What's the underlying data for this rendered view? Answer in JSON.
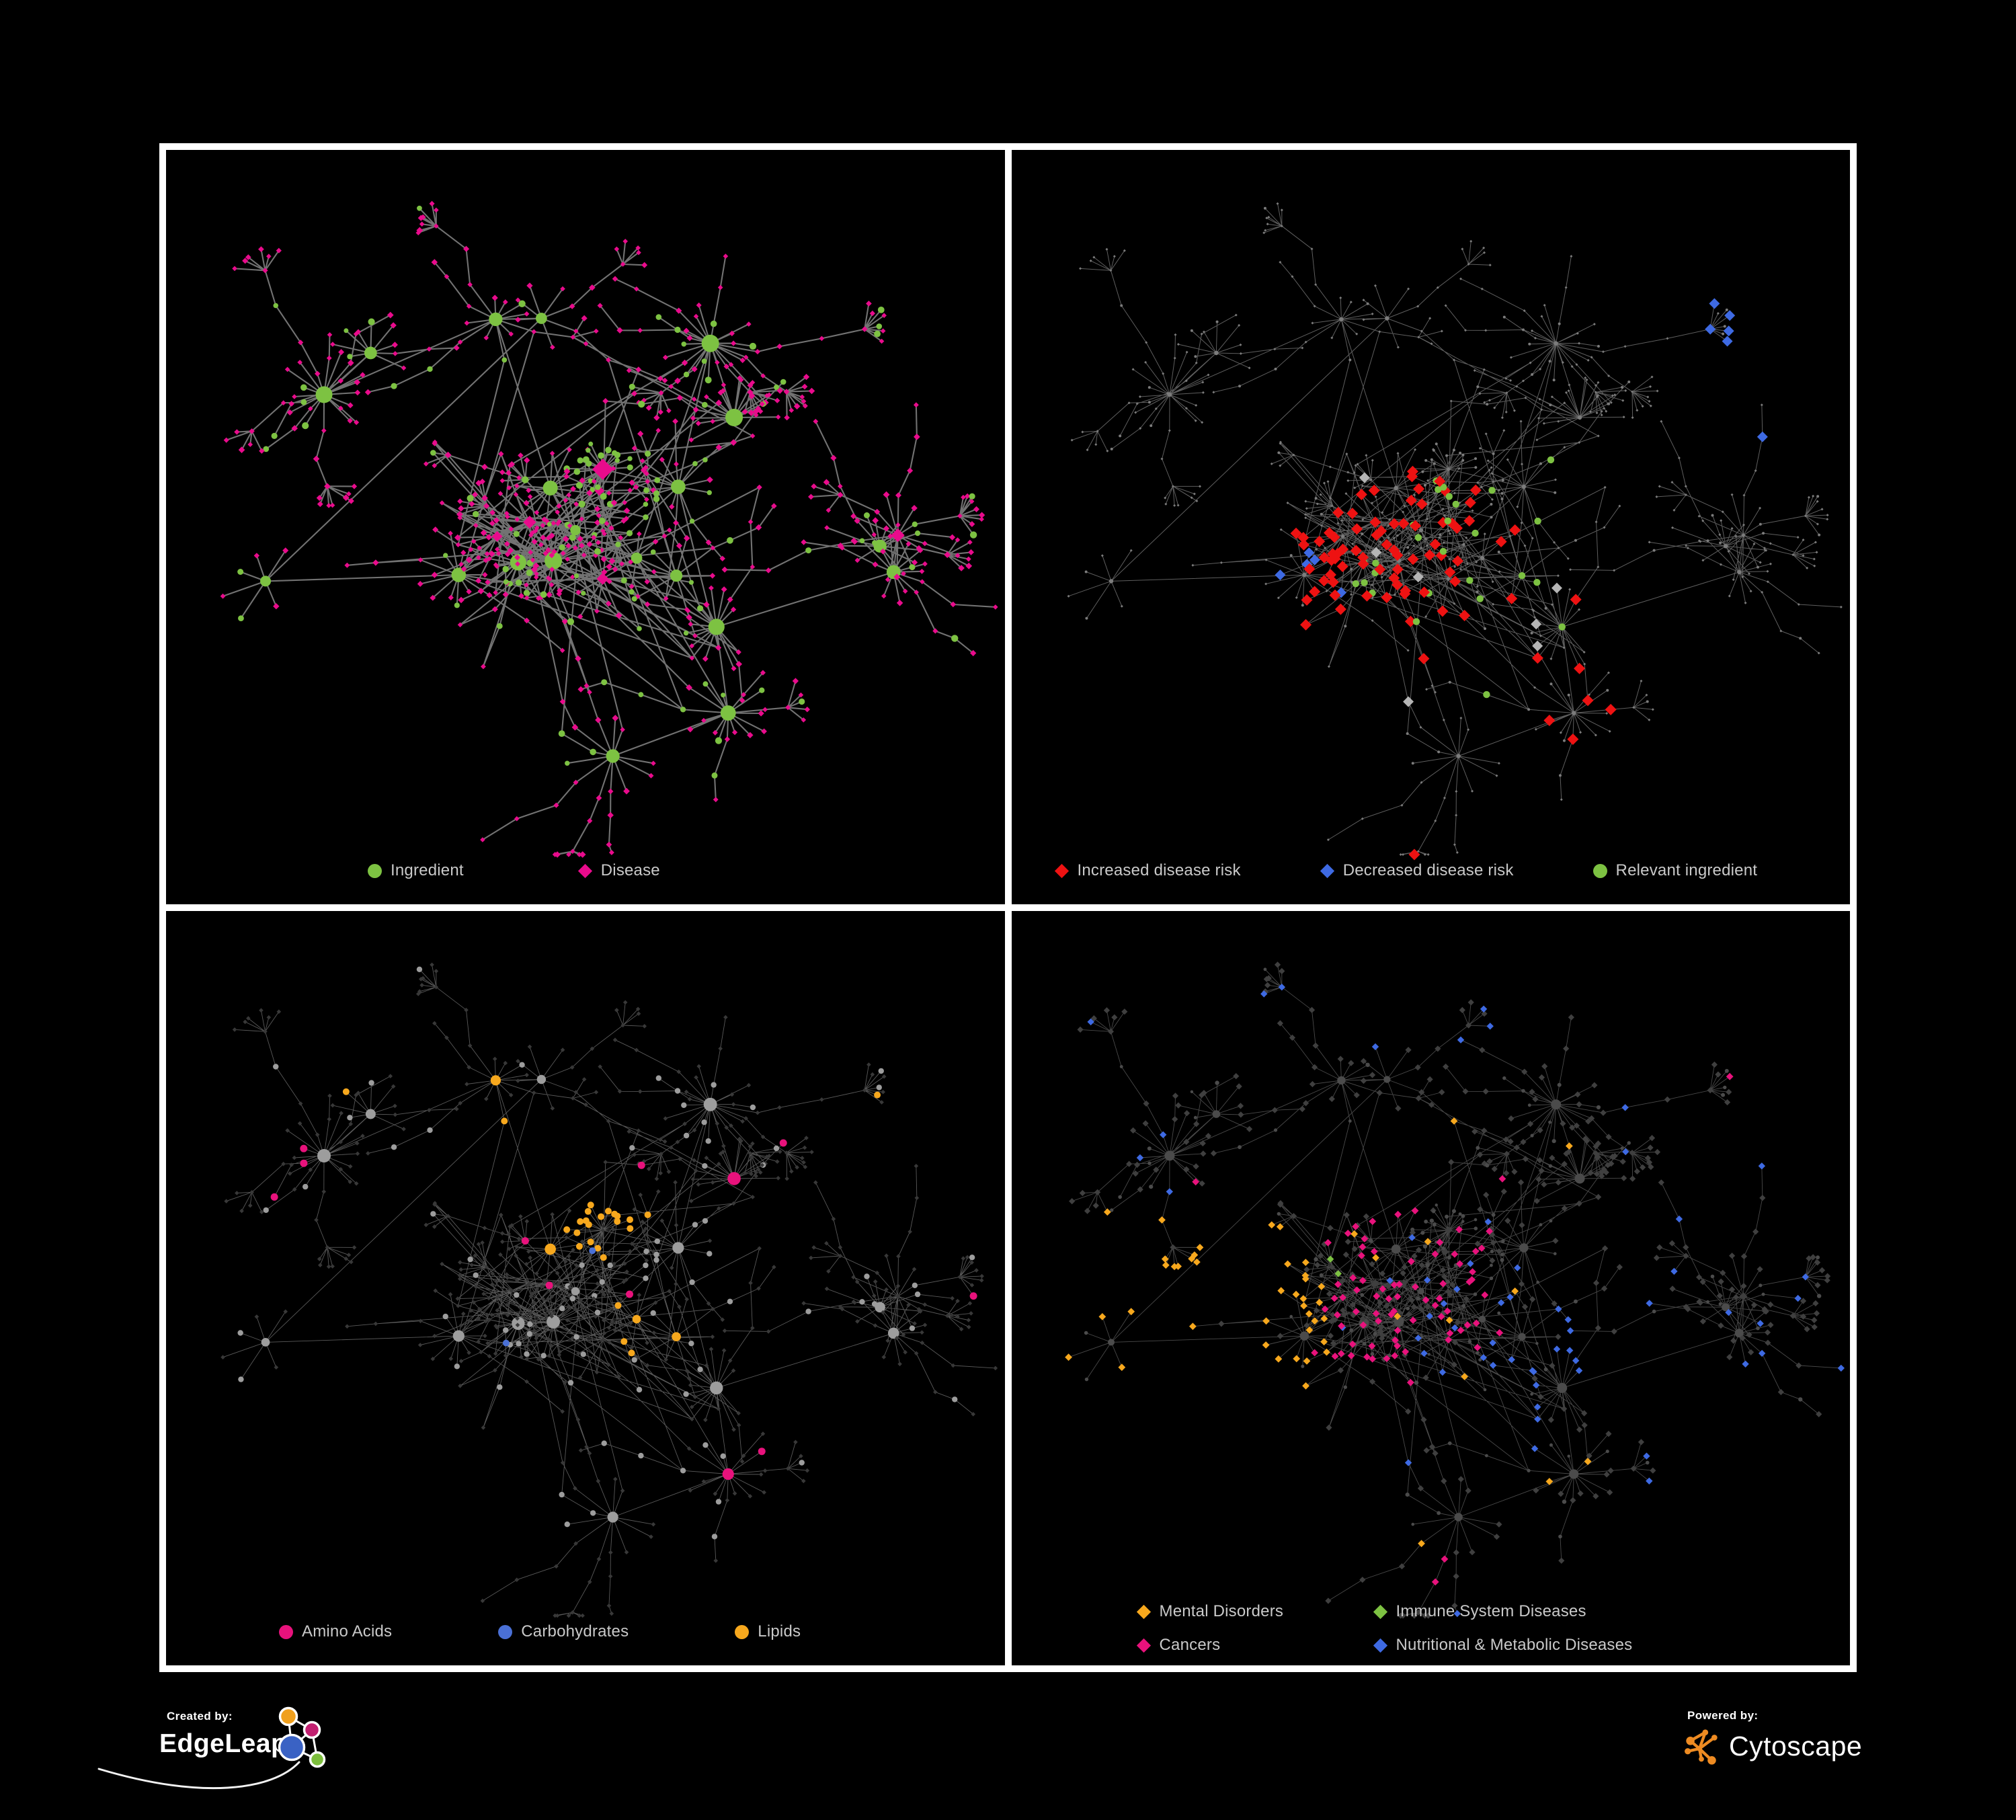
{
  "panels": [
    {
      "name": "ingredient-disease-network",
      "legend": [
        {
          "label": "Ingredient",
          "shape": "circle",
          "color": "#7dc242"
        },
        {
          "label": "Disease",
          "shape": "diamond",
          "color": "#e90b8c"
        }
      ]
    },
    {
      "name": "disease-risk-network",
      "legend": [
        {
          "label": "Increased disease risk",
          "shape": "diamond",
          "color": "#ee1212"
        },
        {
          "label": "Decreased disease risk",
          "shape": "diamond",
          "color": "#3e6ae3"
        },
        {
          "label": "Relevant ingredient",
          "shape": "circle",
          "color": "#7dc242"
        }
      ]
    },
    {
      "name": "macronutrient-network",
      "legend": [
        {
          "label": "Amino Acids",
          "shape": "circle",
          "color": "#e8127c"
        },
        {
          "label": "Carbohydrates",
          "shape": "circle",
          "color": "#4a70d6"
        },
        {
          "label": "Lipids",
          "shape": "circle",
          "color": "#f7a81d"
        }
      ]
    },
    {
      "name": "disease-category-network",
      "legend": [
        {
          "label": "Mental Disorders",
          "shape": "diamond",
          "color": "#f7a81d"
        },
        {
          "label": "Immune System Diseases",
          "shape": "diamond",
          "color": "#7dc242"
        },
        {
          "label": "Cancers",
          "shape": "diamond",
          "color": "#e8127c"
        },
        {
          "label": "Nutritional & Metabolic Diseases",
          "shape": "diamond",
          "color": "#3e6ae3"
        }
      ]
    }
  ],
  "footer": {
    "created_by_label": "Created by:",
    "created_by_brand": "EdgeLeap",
    "powered_by_label": "Powered by:",
    "powered_by_brand": "Cytoscape"
  },
  "network": {
    "seed": 7,
    "node_types": {
      "ingredient": "circle",
      "disease": "diamond"
    },
    "neutral_colors": {
      "panel2_base": "#7c7c7c",
      "panel2_neutral_diamond": "#b5b5b5",
      "panel3_ingredient": "#9d9d9d",
      "panel3_disease": "#383838",
      "panel4_base": "#3f3f3f",
      "panel4_ingredient": "#4b4b4b"
    },
    "edge_styles": [
      {
        "color": "#787878",
        "width": 2.1,
        "opacity": 0.95
      },
      {
        "color": "#6e6e6e",
        "width": 1.0,
        "opacity": 0.85
      },
      {
        "color": "#8f8f8f",
        "width": 0.9,
        "opacity": 0.62
      },
      {
        "color": "#858585",
        "width": 0.9,
        "opacity": 0.55
      }
    ]
  }
}
